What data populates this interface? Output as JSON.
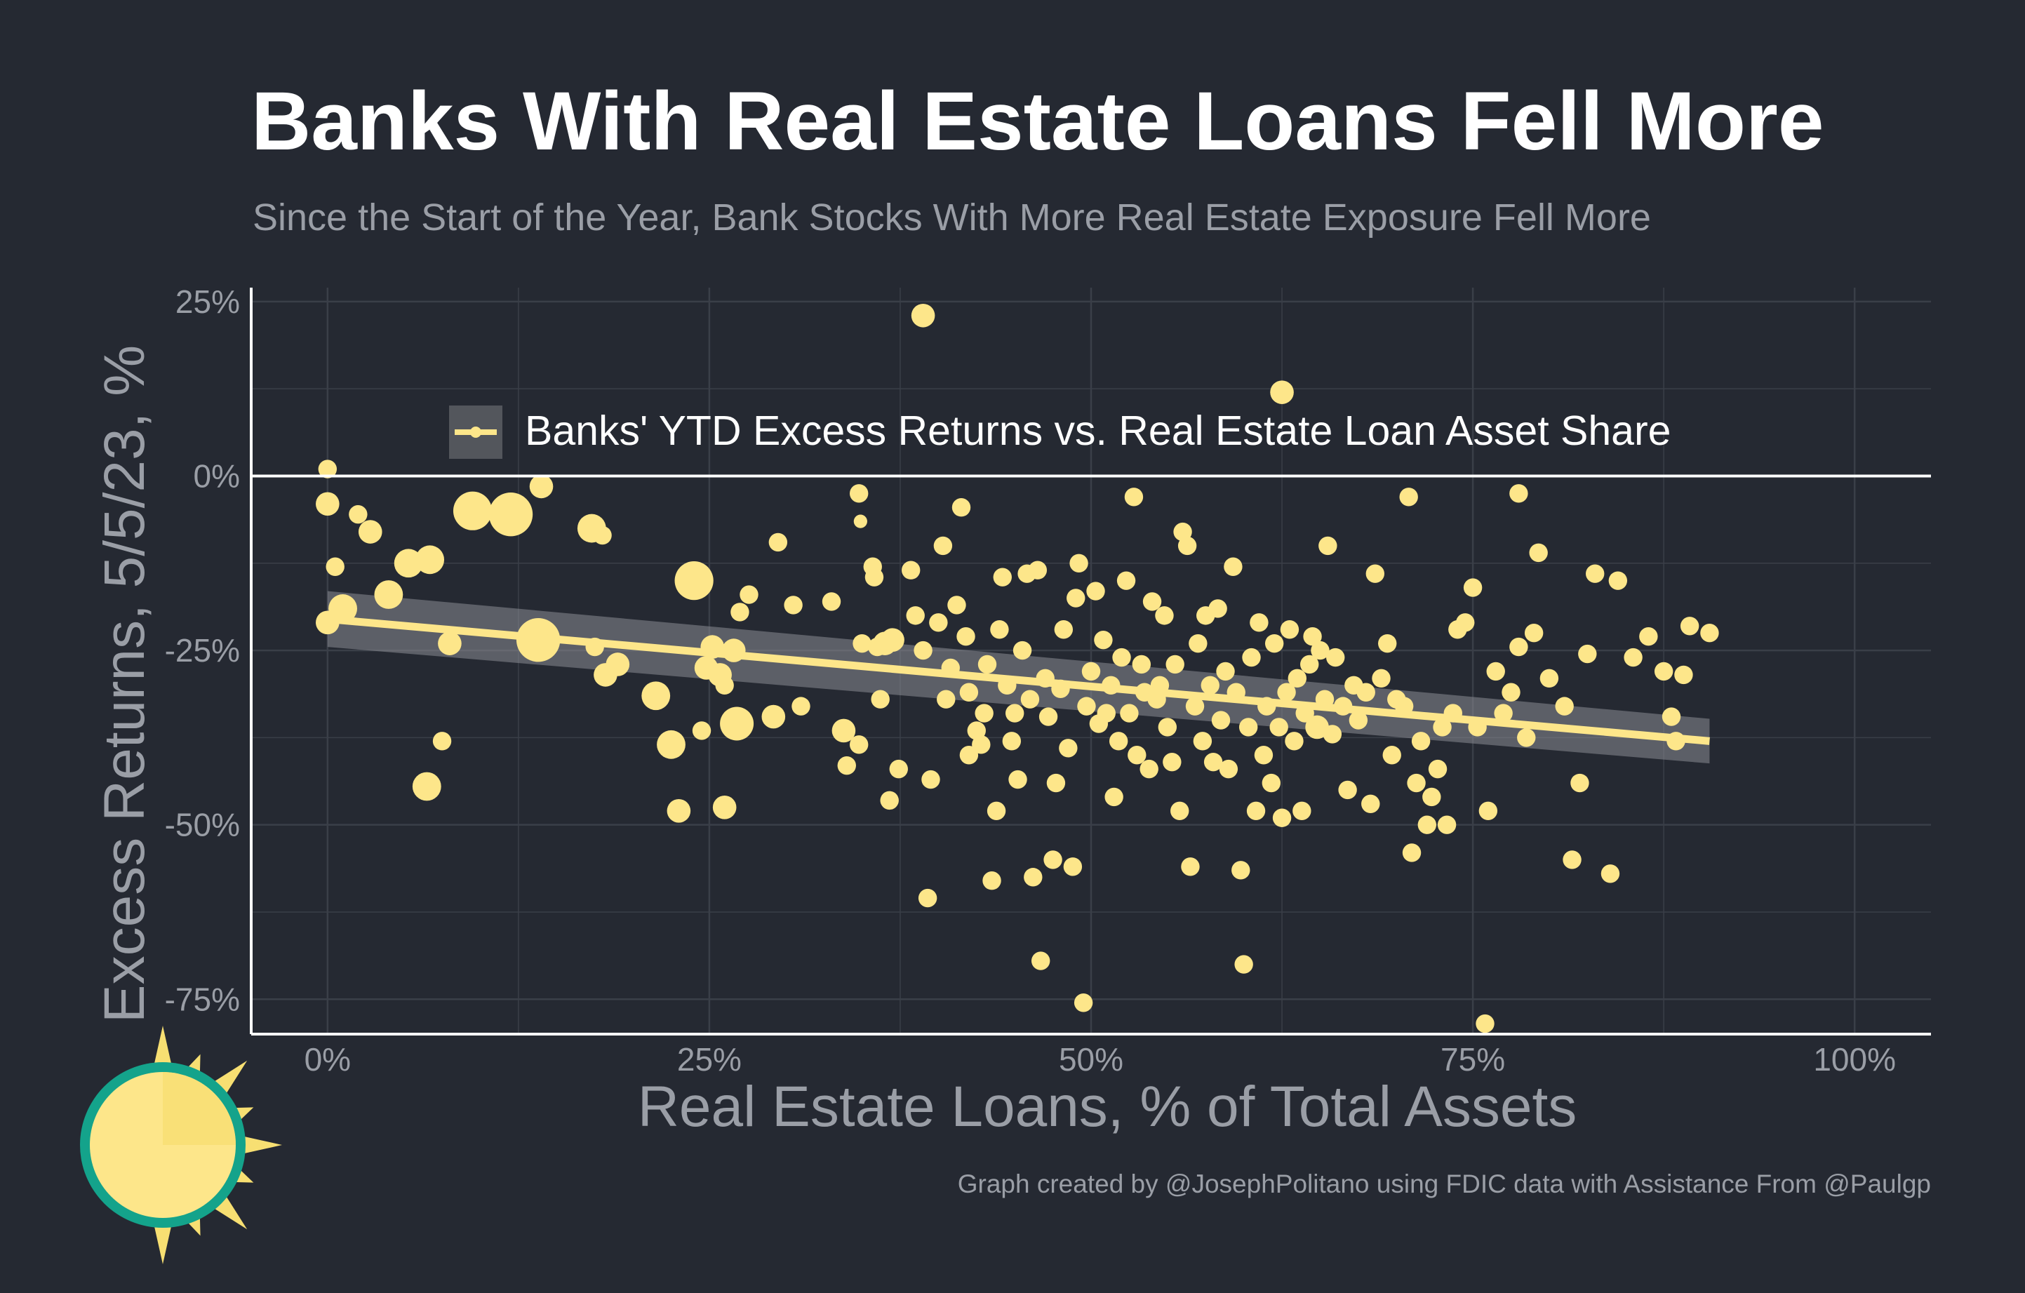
{
  "title": "Banks With Real Estate Loans Fell More",
  "subtitle": "Since the Start of the Year, Bank Stocks With More Real Estate Exposure Fell More",
  "caption": "Graph created by @JosephPolitano using FDIC data with Assistance From @Paulgp",
  "colors": {
    "background": "#252932",
    "point": "#fde68a",
    "trend": "#fde68a",
    "band": "#8a8d93",
    "grid": "#3a3f48",
    "text_muted": "#9a9ea6",
    "logo_ring": "#14a38b",
    "logo_sun": "#f7df72"
  },
  "logo": {
    "icon": "sun-logo-icon"
  },
  "chart_data": {
    "type": "scatter",
    "xlabel": "Real Estate Loans, % of Total Assets",
    "ylabel": "Excess Returns, 5/5/23, %",
    "xlim": [
      -0.05,
      1.05
    ],
    "ylim": [
      -0.8,
      0.27
    ],
    "x_ticks": [
      {
        "value": 0,
        "label": "0%"
      },
      {
        "value": 0.25,
        "label": "25%"
      },
      {
        "value": 0.5,
        "label": "50%"
      },
      {
        "value": 0.75,
        "label": "75%"
      },
      {
        "value": 1.0,
        "label": "100%"
      }
    ],
    "y_ticks": [
      {
        "value": 0.25,
        "label": "25%"
      },
      {
        "value": 0,
        "label": "0%"
      },
      {
        "value": -0.25,
        "label": "-25%"
      },
      {
        "value": -0.5,
        "label": "-50%"
      },
      {
        "value": -0.75,
        "label": "-75%"
      }
    ],
    "grid": true,
    "legend": {
      "position": "top-center",
      "label": "Banks' YTD Excess Returns vs. Real Estate Loan Asset Share"
    },
    "trend": {
      "x": [
        0.0,
        0.905
      ],
      "y": [
        -0.205,
        -0.38
      ],
      "ci_low": [
        -0.245,
        -0.412
      ],
      "ci_high": [
        -0.165,
        -0.348
      ]
    },
    "points": [
      {
        "x": 0.39,
        "y": 0.23,
        "s": 3
      },
      {
        "x": 0.625,
        "y": 0.12,
        "s": 3
      },
      {
        "x": 0.0,
        "y": 0.01,
        "s": 2
      },
      {
        "x": 0.0,
        "y": -0.04,
        "s": 3
      },
      {
        "x": 0.005,
        "y": -0.13,
        "s": 2
      },
      {
        "x": 0.0,
        "y": -0.21,
        "s": 3
      },
      {
        "x": 0.01,
        "y": -0.19,
        "s": 4
      },
      {
        "x": 0.02,
        "y": -0.055,
        "s": 2
      },
      {
        "x": 0.028,
        "y": -0.08,
        "s": 3
      },
      {
        "x": 0.04,
        "y": -0.17,
        "s": 4
      },
      {
        "x": 0.053,
        "y": -0.125,
        "s": 4
      },
      {
        "x": 0.067,
        "y": -0.12,
        "s": 4
      },
      {
        "x": 0.075,
        "y": -0.38,
        "s": 2
      },
      {
        "x": 0.065,
        "y": -0.445,
        "s": 4
      },
      {
        "x": 0.08,
        "y": -0.24,
        "s": 3
      },
      {
        "x": 0.095,
        "y": -0.05,
        "s": 6
      },
      {
        "x": 0.12,
        "y": -0.055,
        "s": 7
      },
      {
        "x": 0.14,
        "y": -0.015,
        "s": 3
      },
      {
        "x": 0.138,
        "y": -0.235,
        "s": 7
      },
      {
        "x": 0.173,
        "y": -0.075,
        "s": 4
      },
      {
        "x": 0.18,
        "y": -0.085,
        "s": 2
      },
      {
        "x": 0.175,
        "y": -0.245,
        "s": 2
      },
      {
        "x": 0.182,
        "y": -0.285,
        "s": 3
      },
      {
        "x": 0.19,
        "y": -0.27,
        "s": 3
      },
      {
        "x": 0.215,
        "y": -0.315,
        "s": 4
      },
      {
        "x": 0.225,
        "y": -0.385,
        "s": 4
      },
      {
        "x": 0.23,
        "y": -0.48,
        "s": 3
      },
      {
        "x": 0.24,
        "y": -0.15,
        "s": 6
      },
      {
        "x": 0.245,
        "y": -0.365,
        "s": 2
      },
      {
        "x": 0.248,
        "y": -0.275,
        "s": 3
      },
      {
        "x": 0.252,
        "y": -0.245,
        "s": 3
      },
      {
        "x": 0.257,
        "y": -0.285,
        "s": 3
      },
      {
        "x": 0.26,
        "y": -0.3,
        "s": 2
      },
      {
        "x": 0.26,
        "y": -0.475,
        "s": 3
      },
      {
        "x": 0.266,
        "y": -0.25,
        "s": 3
      },
      {
        "x": 0.268,
        "y": -0.355,
        "s": 5
      },
      {
        "x": 0.27,
        "y": -0.195,
        "s": 2
      },
      {
        "x": 0.276,
        "y": -0.17,
        "s": 2
      },
      {
        "x": 0.292,
        "y": -0.345,
        "s": 3
      },
      {
        "x": 0.295,
        "y": -0.095,
        "s": 2
      },
      {
        "x": 0.305,
        "y": -0.185,
        "s": 2
      },
      {
        "x": 0.31,
        "y": -0.33,
        "s": 2
      },
      {
        "x": 0.33,
        "y": -0.18,
        "s": 2
      },
      {
        "x": 0.338,
        "y": -0.365,
        "s": 3
      },
      {
        "x": 0.34,
        "y": -0.415,
        "s": 2
      },
      {
        "x": 0.348,
        "y": -0.385,
        "s": 2
      },
      {
        "x": 0.348,
        "y": -0.025,
        "s": 2
      },
      {
        "x": 0.349,
        "y": -0.065,
        "s": 1
      },
      {
        "x": 0.35,
        "y": -0.24,
        "s": 2
      },
      {
        "x": 0.357,
        "y": -0.13,
        "s": 2
      },
      {
        "x": 0.358,
        "y": -0.145,
        "s": 2
      },
      {
        "x": 0.36,
        "y": -0.245,
        "s": 2
      },
      {
        "x": 0.362,
        "y": -0.32,
        "s": 2
      },
      {
        "x": 0.365,
        "y": -0.24,
        "s": 3
      },
      {
        "x": 0.368,
        "y": -0.465,
        "s": 2
      },
      {
        "x": 0.37,
        "y": -0.235,
        "s": 3
      },
      {
        "x": 0.374,
        "y": -0.42,
        "s": 2
      },
      {
        "x": 0.382,
        "y": -0.135,
        "s": 2
      },
      {
        "x": 0.385,
        "y": -0.2,
        "s": 2
      },
      {
        "x": 0.39,
        "y": -0.25,
        "s": 2
      },
      {
        "x": 0.393,
        "y": -0.605,
        "s": 2
      },
      {
        "x": 0.395,
        "y": -0.435,
        "s": 2
      },
      {
        "x": 0.4,
        "y": -0.21,
        "s": 2
      },
      {
        "x": 0.403,
        "y": -0.1,
        "s": 2
      },
      {
        "x": 0.405,
        "y": -0.32,
        "s": 2
      },
      {
        "x": 0.408,
        "y": -0.275,
        "s": 2
      },
      {
        "x": 0.412,
        "y": -0.185,
        "s": 2
      },
      {
        "x": 0.415,
        "y": -0.045,
        "s": 2
      },
      {
        "x": 0.418,
        "y": -0.23,
        "s": 2
      },
      {
        "x": 0.42,
        "y": -0.31,
        "s": 2
      },
      {
        "x": 0.42,
        "y": -0.4,
        "s": 2
      },
      {
        "x": 0.425,
        "y": -0.365,
        "s": 2
      },
      {
        "x": 0.428,
        "y": -0.385,
        "s": 2
      },
      {
        "x": 0.43,
        "y": -0.34,
        "s": 2
      },
      {
        "x": 0.432,
        "y": -0.27,
        "s": 2
      },
      {
        "x": 0.435,
        "y": -0.58,
        "s": 2
      },
      {
        "x": 0.438,
        "y": -0.48,
        "s": 2
      },
      {
        "x": 0.44,
        "y": -0.22,
        "s": 2
      },
      {
        "x": 0.442,
        "y": -0.145,
        "s": 2
      },
      {
        "x": 0.445,
        "y": -0.3,
        "s": 2
      },
      {
        "x": 0.448,
        "y": -0.38,
        "s": 2
      },
      {
        "x": 0.45,
        "y": -0.34,
        "s": 2
      },
      {
        "x": 0.452,
        "y": -0.435,
        "s": 2
      },
      {
        "x": 0.455,
        "y": -0.25,
        "s": 2
      },
      {
        "x": 0.458,
        "y": -0.14,
        "s": 2
      },
      {
        "x": 0.46,
        "y": -0.32,
        "s": 2
      },
      {
        "x": 0.462,
        "y": -0.575,
        "s": 2
      },
      {
        "x": 0.465,
        "y": -0.135,
        "s": 2
      },
      {
        "x": 0.467,
        "y": -0.695,
        "s": 2
      },
      {
        "x": 0.47,
        "y": -0.29,
        "s": 2
      },
      {
        "x": 0.472,
        "y": -0.345,
        "s": 2
      },
      {
        "x": 0.475,
        "y": -0.55,
        "s": 2
      },
      {
        "x": 0.477,
        "y": -0.44,
        "s": 2
      },
      {
        "x": 0.48,
        "y": -0.305,
        "s": 2
      },
      {
        "x": 0.482,
        "y": -0.22,
        "s": 2
      },
      {
        "x": 0.485,
        "y": -0.39,
        "s": 2
      },
      {
        "x": 0.488,
        "y": -0.56,
        "s": 2
      },
      {
        "x": 0.49,
        "y": -0.175,
        "s": 2
      },
      {
        "x": 0.492,
        "y": -0.125,
        "s": 2
      },
      {
        "x": 0.495,
        "y": -0.755,
        "s": 2
      },
      {
        "x": 0.497,
        "y": -0.33,
        "s": 2
      },
      {
        "x": 0.5,
        "y": -0.28,
        "s": 2
      },
      {
        "x": 0.503,
        "y": -0.165,
        "s": 2
      },
      {
        "x": 0.505,
        "y": -0.355,
        "s": 2
      },
      {
        "x": 0.508,
        "y": -0.235,
        "s": 2
      },
      {
        "x": 0.51,
        "y": -0.34,
        "s": 2
      },
      {
        "x": 0.513,
        "y": -0.3,
        "s": 2
      },
      {
        "x": 0.515,
        "y": -0.46,
        "s": 2
      },
      {
        "x": 0.518,
        "y": -0.38,
        "s": 2
      },
      {
        "x": 0.52,
        "y": -0.26,
        "s": 2
      },
      {
        "x": 0.523,
        "y": -0.15,
        "s": 2
      },
      {
        "x": 0.525,
        "y": -0.34,
        "s": 2
      },
      {
        "x": 0.528,
        "y": -0.03,
        "s": 2
      },
      {
        "x": 0.53,
        "y": -0.4,
        "s": 2
      },
      {
        "x": 0.533,
        "y": -0.27,
        "s": 2
      },
      {
        "x": 0.535,
        "y": -0.31,
        "s": 2
      },
      {
        "x": 0.538,
        "y": -0.42,
        "s": 2
      },
      {
        "x": 0.54,
        "y": -0.18,
        "s": 2
      },
      {
        "x": 0.543,
        "y": -0.32,
        "s": 2
      },
      {
        "x": 0.545,
        "y": -0.3,
        "s": 2
      },
      {
        "x": 0.548,
        "y": -0.2,
        "s": 2
      },
      {
        "x": 0.55,
        "y": -0.36,
        "s": 2
      },
      {
        "x": 0.553,
        "y": -0.41,
        "s": 2
      },
      {
        "x": 0.555,
        "y": -0.27,
        "s": 2
      },
      {
        "x": 0.558,
        "y": -0.48,
        "s": 2
      },
      {
        "x": 0.56,
        "y": -0.08,
        "s": 2
      },
      {
        "x": 0.563,
        "y": -0.1,
        "s": 2
      },
      {
        "x": 0.565,
        "y": -0.56,
        "s": 2
      },
      {
        "x": 0.568,
        "y": -0.33,
        "s": 2
      },
      {
        "x": 0.57,
        "y": -0.24,
        "s": 2
      },
      {
        "x": 0.573,
        "y": -0.38,
        "s": 2
      },
      {
        "x": 0.575,
        "y": -0.2,
        "s": 2
      },
      {
        "x": 0.578,
        "y": -0.3,
        "s": 2
      },
      {
        "x": 0.58,
        "y": -0.41,
        "s": 2
      },
      {
        "x": 0.583,
        "y": -0.19,
        "s": 2
      },
      {
        "x": 0.585,
        "y": -0.35,
        "s": 2
      },
      {
        "x": 0.588,
        "y": -0.28,
        "s": 2
      },
      {
        "x": 0.59,
        "y": -0.42,
        "s": 2
      },
      {
        "x": 0.593,
        "y": -0.13,
        "s": 2
      },
      {
        "x": 0.595,
        "y": -0.31,
        "s": 2
      },
      {
        "x": 0.598,
        "y": -0.565,
        "s": 2
      },
      {
        "x": 0.6,
        "y": -0.7,
        "s": 2
      },
      {
        "x": 0.603,
        "y": -0.36,
        "s": 2
      },
      {
        "x": 0.605,
        "y": -0.26,
        "s": 2
      },
      {
        "x": 0.608,
        "y": -0.48,
        "s": 2
      },
      {
        "x": 0.61,
        "y": -0.21,
        "s": 2
      },
      {
        "x": 0.613,
        "y": -0.4,
        "s": 2
      },
      {
        "x": 0.615,
        "y": -0.33,
        "s": 2
      },
      {
        "x": 0.618,
        "y": -0.44,
        "s": 2
      },
      {
        "x": 0.62,
        "y": -0.24,
        "s": 2
      },
      {
        "x": 0.623,
        "y": -0.36,
        "s": 2
      },
      {
        "x": 0.625,
        "y": -0.49,
        "s": 2
      },
      {
        "x": 0.628,
        "y": -0.31,
        "s": 2
      },
      {
        "x": 0.63,
        "y": -0.22,
        "s": 2
      },
      {
        "x": 0.633,
        "y": -0.38,
        "s": 2
      },
      {
        "x": 0.635,
        "y": -0.29,
        "s": 2
      },
      {
        "x": 0.638,
        "y": -0.48,
        "s": 2
      },
      {
        "x": 0.64,
        "y": -0.34,
        "s": 2
      },
      {
        "x": 0.643,
        "y": -0.27,
        "s": 2
      },
      {
        "x": 0.645,
        "y": -0.23,
        "s": 2
      },
      {
        "x": 0.648,
        "y": -0.36,
        "s": 3
      },
      {
        "x": 0.65,
        "y": -0.25,
        "s": 2
      },
      {
        "x": 0.653,
        "y": -0.32,
        "s": 2
      },
      {
        "x": 0.655,
        "y": -0.1,
        "s": 2
      },
      {
        "x": 0.658,
        "y": -0.37,
        "s": 2
      },
      {
        "x": 0.66,
        "y": -0.26,
        "s": 2
      },
      {
        "x": 0.665,
        "y": -0.33,
        "s": 2
      },
      {
        "x": 0.668,
        "y": -0.45,
        "s": 2
      },
      {
        "x": 0.672,
        "y": -0.3,
        "s": 2
      },
      {
        "x": 0.675,
        "y": -0.35,
        "s": 2
      },
      {
        "x": 0.68,
        "y": -0.31,
        "s": 2
      },
      {
        "x": 0.683,
        "y": -0.47,
        "s": 2
      },
      {
        "x": 0.686,
        "y": -0.14,
        "s": 2
      },
      {
        "x": 0.69,
        "y": -0.29,
        "s": 2
      },
      {
        "x": 0.694,
        "y": -0.24,
        "s": 2
      },
      {
        "x": 0.697,
        "y": -0.4,
        "s": 2
      },
      {
        "x": 0.7,
        "y": -0.32,
        "s": 2
      },
      {
        "x": 0.705,
        "y": -0.33,
        "s": 2
      },
      {
        "x": 0.708,
        "y": -0.03,
        "s": 2
      },
      {
        "x": 0.71,
        "y": -0.54,
        "s": 2
      },
      {
        "x": 0.713,
        "y": -0.44,
        "s": 2
      },
      {
        "x": 0.716,
        "y": -0.38,
        "s": 2
      },
      {
        "x": 0.72,
        "y": -0.5,
        "s": 2
      },
      {
        "x": 0.723,
        "y": -0.46,
        "s": 2
      },
      {
        "x": 0.727,
        "y": -0.42,
        "s": 2
      },
      {
        "x": 0.73,
        "y": -0.36,
        "s": 2
      },
      {
        "x": 0.733,
        "y": -0.5,
        "s": 2
      },
      {
        "x": 0.737,
        "y": -0.34,
        "s": 2
      },
      {
        "x": 0.74,
        "y": -0.22,
        "s": 2
      },
      {
        "x": 0.745,
        "y": -0.21,
        "s": 2
      },
      {
        "x": 0.75,
        "y": -0.16,
        "s": 2
      },
      {
        "x": 0.753,
        "y": -0.36,
        "s": 2
      },
      {
        "x": 0.76,
        "y": -0.48,
        "s": 2
      },
      {
        "x": 0.765,
        "y": -0.28,
        "s": 2
      },
      {
        "x": 0.77,
        "y": -0.34,
        "s": 2
      },
      {
        "x": 0.775,
        "y": -0.31,
        "s": 2
      },
      {
        "x": 0.78,
        "y": -0.245,
        "s": 2
      },
      {
        "x": 0.785,
        "y": -0.375,
        "s": 2
      },
      {
        "x": 0.79,
        "y": -0.225,
        "s": 2
      },
      {
        "x": 0.793,
        "y": -0.11,
        "s": 2
      },
      {
        "x": 0.8,
        "y": -0.29,
        "s": 2
      },
      {
        "x": 0.81,
        "y": -0.33,
        "s": 2
      },
      {
        "x": 0.815,
        "y": -0.55,
        "s": 2
      },
      {
        "x": 0.82,
        "y": -0.44,
        "s": 2
      },
      {
        "x": 0.825,
        "y": -0.255,
        "s": 2
      },
      {
        "x": 0.83,
        "y": -0.14,
        "s": 2
      },
      {
        "x": 0.84,
        "y": -0.57,
        "s": 2
      },
      {
        "x": 0.845,
        "y": -0.15,
        "s": 2
      },
      {
        "x": 0.855,
        "y": -0.26,
        "s": 2
      },
      {
        "x": 0.865,
        "y": -0.23,
        "s": 2
      },
      {
        "x": 0.875,
        "y": -0.28,
        "s": 2
      },
      {
        "x": 0.88,
        "y": -0.345,
        "s": 2
      },
      {
        "x": 0.883,
        "y": -0.38,
        "s": 2
      },
      {
        "x": 0.888,
        "y": -0.285,
        "s": 2
      },
      {
        "x": 0.892,
        "y": -0.215,
        "s": 2
      },
      {
        "x": 0.905,
        "y": -0.225,
        "s": 2
      },
      {
        "x": 0.758,
        "y": -0.785,
        "s": 2
      },
      {
        "x": 0.78,
        "y": -0.025,
        "s": 2
      }
    ]
  }
}
